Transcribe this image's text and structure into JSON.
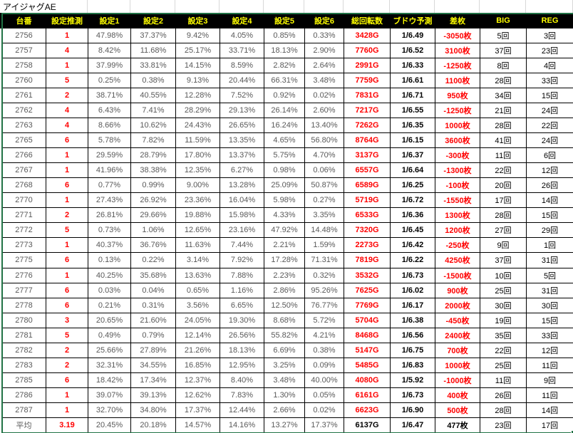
{
  "title": "アイジャグAE",
  "columns": [
    "台番",
    "設定推測",
    "設定1",
    "設定2",
    "設定3",
    "設定4",
    "設定5",
    "設定6",
    "総回転数",
    "ブドウ予測",
    "差枚",
    "BIG",
    "REG"
  ],
  "rows": [
    [
      "2756",
      "1",
      "47.98%",
      "37.37%",
      "9.42%",
      "4.05%",
      "0.85%",
      "0.33%",
      "3428G",
      "1/6.49",
      "-3050枚",
      "5回",
      "3回"
    ],
    [
      "2757",
      "4",
      "8.42%",
      "11.68%",
      "25.17%",
      "33.71%",
      "18.13%",
      "2.90%",
      "7760G",
      "1/6.52",
      "3100枚",
      "37回",
      "23回"
    ],
    [
      "2758",
      "1",
      "37.99%",
      "33.81%",
      "14.15%",
      "8.59%",
      "2.82%",
      "2.64%",
      "2991G",
      "1/6.33",
      "-1250枚",
      "8回",
      "4回"
    ],
    [
      "2760",
      "5",
      "0.25%",
      "0.38%",
      "9.13%",
      "20.44%",
      "66.31%",
      "3.48%",
      "7759G",
      "1/6.61",
      "1100枚",
      "28回",
      "33回"
    ],
    [
      "2761",
      "2",
      "38.71%",
      "40.55%",
      "12.28%",
      "7.52%",
      "0.92%",
      "0.02%",
      "7831G",
      "1/6.71",
      "950枚",
      "34回",
      "15回"
    ],
    [
      "2762",
      "4",
      "6.43%",
      "7.41%",
      "28.29%",
      "29.13%",
      "26.14%",
      "2.60%",
      "7217G",
      "1/6.55",
      "-1250枚",
      "21回",
      "24回"
    ],
    [
      "2763",
      "4",
      "8.66%",
      "10.62%",
      "24.43%",
      "26.65%",
      "16.24%",
      "13.40%",
      "7262G",
      "1/6.35",
      "1000枚",
      "28回",
      "22回"
    ],
    [
      "2765",
      "6",
      "5.78%",
      "7.82%",
      "11.59%",
      "13.35%",
      "4.65%",
      "56.80%",
      "8764G",
      "1/6.15",
      "3600枚",
      "41回",
      "24回"
    ],
    [
      "2766",
      "1",
      "29.59%",
      "28.79%",
      "17.80%",
      "13.37%",
      "5.75%",
      "4.70%",
      "3137G",
      "1/6.37",
      "-300枚",
      "11回",
      "6回"
    ],
    [
      "2767",
      "1",
      "41.96%",
      "38.38%",
      "12.35%",
      "6.27%",
      "0.98%",
      "0.06%",
      "6557G",
      "1/6.64",
      "-1300枚",
      "22回",
      "12回"
    ],
    [
      "2768",
      "6",
      "0.77%",
      "0.99%",
      "9.00%",
      "13.28%",
      "25.09%",
      "50.87%",
      "6589G",
      "1/6.25",
      "-100枚",
      "20回",
      "26回"
    ],
    [
      "2770",
      "1",
      "27.43%",
      "26.92%",
      "23.36%",
      "16.04%",
      "5.98%",
      "0.27%",
      "5719G",
      "1/6.72",
      "-1550枚",
      "17回",
      "14回"
    ],
    [
      "2771",
      "2",
      "26.81%",
      "29.66%",
      "19.88%",
      "15.98%",
      "4.33%",
      "3.35%",
      "6533G",
      "1/6.36",
      "1300枚",
      "28回",
      "15回"
    ],
    [
      "2772",
      "5",
      "0.73%",
      "1.06%",
      "12.65%",
      "23.16%",
      "47.92%",
      "14.48%",
      "7320G",
      "1/6.45",
      "1200枚",
      "27回",
      "29回"
    ],
    [
      "2773",
      "1",
      "40.37%",
      "36.76%",
      "11.63%",
      "7.44%",
      "2.21%",
      "1.59%",
      "2273G",
      "1/6.42",
      "-250枚",
      "9回",
      "1回"
    ],
    [
      "2775",
      "6",
      "0.13%",
      "0.22%",
      "3.14%",
      "7.92%",
      "17.28%",
      "71.31%",
      "7819G",
      "1/6.22",
      "4250枚",
      "37回",
      "31回"
    ],
    [
      "2776",
      "1",
      "40.25%",
      "35.68%",
      "13.63%",
      "7.88%",
      "2.23%",
      "0.32%",
      "3532G",
      "1/6.73",
      "-1500枚",
      "10回",
      "5回"
    ],
    [
      "2777",
      "6",
      "0.03%",
      "0.04%",
      "0.65%",
      "1.16%",
      "2.86%",
      "95.26%",
      "7625G",
      "1/6.02",
      "900枚",
      "25回",
      "31回"
    ],
    [
      "2778",
      "6",
      "0.21%",
      "0.31%",
      "3.56%",
      "6.65%",
      "12.50%",
      "76.77%",
      "7769G",
      "1/6.17",
      "2000枚",
      "30回",
      "30回"
    ],
    [
      "2780",
      "3",
      "20.65%",
      "21.60%",
      "24.05%",
      "19.30%",
      "8.68%",
      "5.72%",
      "5704G",
      "1/6.38",
      "-450枚",
      "19回",
      "15回"
    ],
    [
      "2781",
      "5",
      "0.49%",
      "0.79%",
      "12.14%",
      "26.56%",
      "55.82%",
      "4.21%",
      "8468G",
      "1/6.56",
      "2400枚",
      "35回",
      "33回"
    ],
    [
      "2782",
      "2",
      "25.66%",
      "27.89%",
      "21.26%",
      "18.13%",
      "6.69%",
      "0.38%",
      "5147G",
      "1/6.75",
      "700枚",
      "22回",
      "12回"
    ],
    [
      "2783",
      "2",
      "32.31%",
      "34.55%",
      "16.85%",
      "12.95%",
      "3.25%",
      "0.09%",
      "5485G",
      "1/6.83",
      "1000枚",
      "25回",
      "11回"
    ],
    [
      "2785",
      "6",
      "18.42%",
      "17.34%",
      "12.37%",
      "8.40%",
      "3.48%",
      "40.00%",
      "4080G",
      "1/5.92",
      "-1000枚",
      "11回",
      "9回"
    ],
    [
      "2786",
      "1",
      "39.07%",
      "39.13%",
      "12.62%",
      "7.83%",
      "1.30%",
      "0.05%",
      "6161G",
      "1/6.73",
      "400枚",
      "26回",
      "11回"
    ],
    [
      "2787",
      "1",
      "32.70%",
      "34.80%",
      "17.37%",
      "12.44%",
      "2.66%",
      "0.02%",
      "6623G",
      "1/6.90",
      "500枚",
      "28回",
      "14回"
    ]
  ],
  "average_row": [
    "平均",
    "3.19",
    "20.45%",
    "20.18%",
    "14.57%",
    "14.16%",
    "13.27%",
    "17.37%",
    "6137G",
    "1/6.47",
    "477枚",
    "23回",
    "17回"
  ],
  "selected_cell_row": "2786",
  "colors": {
    "header_bg": "#000000",
    "header_text": "#ffff00",
    "accent_red": "#ff0000",
    "percent_gray": "#595959",
    "selection_green": "#217346",
    "gridline_gray": "#d8d8d8",
    "cell_border": "#000000"
  }
}
